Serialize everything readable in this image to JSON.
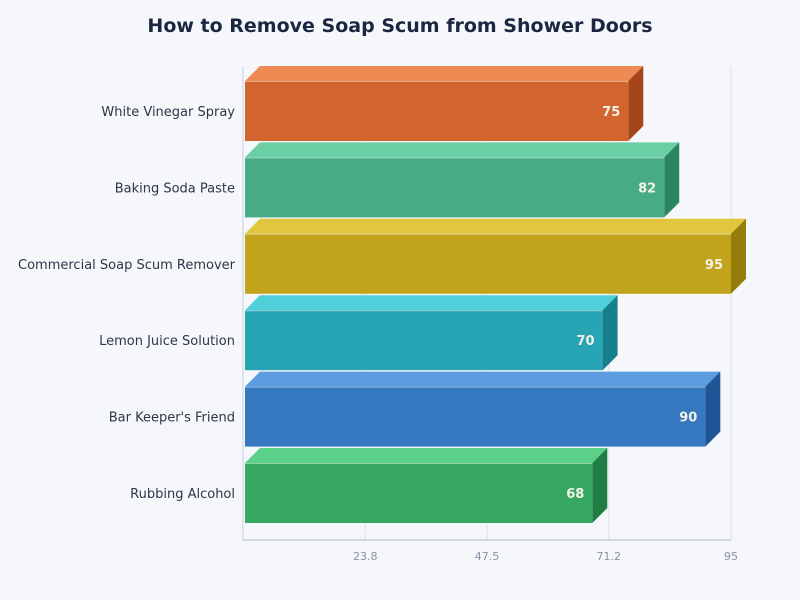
{
  "chart_data": {
    "type": "bar",
    "orientation": "horizontal",
    "style": "3d",
    "title": "How to Remove Soap Scum from Shower Doors",
    "xlabel": "",
    "ylabel": "",
    "categories": [
      "White Vinegar Spray",
      "Baking Soda Paste",
      "Commercial Soap Scum Remover",
      "Lemon Juice Solution",
      "Bar Keeper's Friend",
      "Rubbing Alcohol"
    ],
    "values": [
      75,
      82,
      95,
      70,
      90,
      68
    ],
    "xlim": [
      0,
      95
    ],
    "xticks": [
      "23.8",
      "47.5",
      "71.2",
      "95"
    ],
    "xtick_values": [
      23.8,
      47.5,
      71.2,
      95
    ],
    "grid": "vertical",
    "legend": "none",
    "data_labels": true
  },
  "colors": {
    "background": "#f5f7fb",
    "title": "#1b2640",
    "label": "#2d3748",
    "tick": "#8a93a3",
    "grid": "#dde1e8",
    "axis": "#c9ced8",
    "value_label": "#f4f1e8",
    "bars": [
      {
        "front": "#d2642e",
        "top": "#ee8a53",
        "side": "#a5461a"
      },
      {
        "front": "#47ab84",
        "top": "#6bcfa5",
        "side": "#2a8460"
      },
      {
        "front": "#c2a41c",
        "top": "#e2c63e",
        "side": "#967c08"
      },
      {
        "front": "#27a5b4",
        "top": "#4ecfd9",
        "side": "#157f8c"
      },
      {
        "front": "#3578c0",
        "top": "#5b9ddf",
        "side": "#1f5595"
      },
      {
        "front": "#37a862",
        "top": "#5ccf88",
        "side": "#1f7e43"
      }
    ]
  }
}
